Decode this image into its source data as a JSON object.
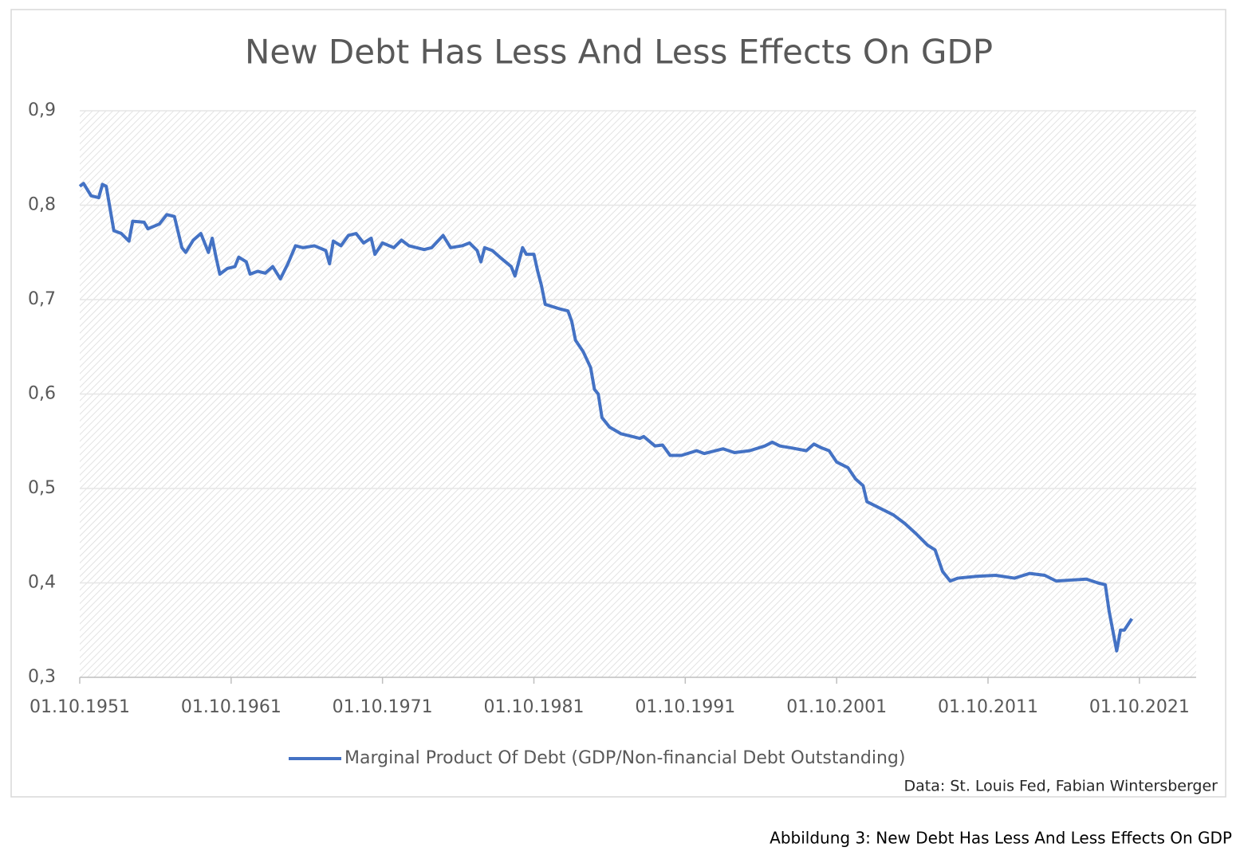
{
  "chart_data": {
    "type": "line",
    "title": "New Debt Has Less And Less Effects On GDP",
    "source": "Data: St. Louis Fed, Fabian Wintersberger",
    "caption": "Abbildung 3: New Debt Has Less And Less Effects On GDP",
    "legend": "bottom",
    "grid": true,
    "x": [
      "1951-10-01",
      "1952-01-01",
      "1952-07-01",
      "1953-01-01",
      "1953-04-01",
      "1953-07-01",
      "1954-01-01",
      "1954-07-01",
      "1955-01-01",
      "1955-04-01",
      "1956-01-01",
      "1956-04-01",
      "1957-01-01",
      "1957-07-01",
      "1958-01-01",
      "1958-07-01",
      "1958-10-01",
      "1959-04-01",
      "1959-10-01",
      "1960-04-01",
      "1960-07-01",
      "1960-10-01",
      "1961-01-01",
      "1961-07-01",
      "1962-01-01",
      "1962-04-01",
      "1962-10-01",
      "1963-01-01",
      "1963-07-01",
      "1964-01-01",
      "1964-07-01",
      "1965-01-01",
      "1965-07-01",
      "1966-01-01",
      "1966-07-01",
      "1967-04-01",
      "1968-01-01",
      "1968-04-01",
      "1968-07-01",
      "1969-01-01",
      "1969-07-01",
      "1970-01-01",
      "1970-07-01",
      "1971-01-01",
      "1971-04-01",
      "1971-10-01",
      "1972-07-01",
      "1973-01-01",
      "1973-07-01",
      "1974-07-01",
      "1975-01-01",
      "1975-10-01",
      "1976-04-01",
      "1977-01-01",
      "1977-07-01",
      "1978-01-01",
      "1978-04-01",
      "1978-07-01",
      "1979-01-01",
      "1979-07-01",
      "1980-04-01",
      "1980-07-01",
      "1981-01-01",
      "1981-04-01",
      "1981-10-01",
      "1982-01-01",
      "1982-04-01",
      "1982-07-01",
      "1983-07-01",
      "1984-01-01",
      "1984-04-01",
      "1984-07-01",
      "1985-01-01",
      "1985-07-01",
      "1985-10-01",
      "1986-01-01",
      "1986-04-01",
      "1986-10-01",
      "1987-07-01",
      "1988-04-01",
      "1988-10-01",
      "1989-01-01",
      "1989-10-01",
      "1990-04-01",
      "1990-10-01",
      "1991-07-01",
      "1992-07-01",
      "1993-01-01",
      "1994-04-01",
      "1995-01-01",
      "1996-01-01",
      "1997-01-01",
      "1997-07-01",
      "1998-01-01",
      "1998-10-01",
      "1999-10-01",
      "2000-04-01",
      "2000-10-01",
      "2001-04-01",
      "2001-10-01",
      "2002-07-01",
      "2003-01-01",
      "2003-07-01",
      "2003-10-01",
      "2004-07-01",
      "2005-07-01",
      "2006-04-01",
      "2007-01-01",
      "2007-10-01",
      "2008-04-01",
      "2008-10-01",
      "2009-04-01",
      "2009-10-01",
      "2011-01-01",
      "2012-04-01",
      "2013-07-01",
      "2014-07-01",
      "2015-07-01",
      "2016-04-01",
      "2017-04-01",
      "2018-04-01",
      "2019-01-01",
      "2019-07-01",
      "2019-10-01",
      "2020-04-01",
      "2020-07-01",
      "2020-10-01",
      "2021-04-01"
    ],
    "series": [
      {
        "name": "Marginal Product Of Debt (GDP/Non-financial Debt Outstanding)",
        "color": "#4472c4",
        "values": [
          0.82,
          0.823,
          0.81,
          0.808,
          0.822,
          0.82,
          0.773,
          0.77,
          0.762,
          0.783,
          0.782,
          0.775,
          0.78,
          0.79,
          0.788,
          0.755,
          0.75,
          0.763,
          0.77,
          0.75,
          0.765,
          0.745,
          0.727,
          0.733,
          0.735,
          0.745,
          0.74,
          0.727,
          0.73,
          0.728,
          0.735,
          0.722,
          0.738,
          0.757,
          0.755,
          0.757,
          0.752,
          0.738,
          0.762,
          0.757,
          0.768,
          0.77,
          0.76,
          0.765,
          0.748,
          0.76,
          0.755,
          0.763,
          0.757,
          0.753,
          0.755,
          0.768,
          0.755,
          0.757,
          0.76,
          0.752,
          0.74,
          0.755,
          0.752,
          0.745,
          0.735,
          0.725,
          0.755,
          0.748,
          0.748,
          0.73,
          0.715,
          0.695,
          0.69,
          0.688,
          0.677,
          0.657,
          0.645,
          0.628,
          0.605,
          0.6,
          0.575,
          0.565,
          0.558,
          0.555,
          0.553,
          0.555,
          0.545,
          0.546,
          0.535,
          0.535,
          0.54,
          0.537,
          0.542,
          0.538,
          0.54,
          0.545,
          0.549,
          0.545,
          0.543,
          0.54,
          0.547,
          0.543,
          0.54,
          0.528,
          0.522,
          0.51,
          0.503,
          0.486,
          0.48,
          0.472,
          0.463,
          0.452,
          0.44,
          0.435,
          0.412,
          0.402,
          0.405,
          0.407,
          0.408,
          0.405,
          0.41,
          0.408,
          0.402,
          0.403,
          0.404,
          0.4,
          0.398,
          0.37,
          0.328,
          0.35,
          0.35,
          0.362
        ]
      }
    ],
    "xlim": [
      "1951-10-01",
      "2025-07-01"
    ],
    "xticks": [
      {
        "value": "1951-10-01",
        "label": "01.10.1951"
      },
      {
        "value": "1961-10-01",
        "label": "01.10.1961"
      },
      {
        "value": "1971-10-01",
        "label": "01.10.1971"
      },
      {
        "value": "1981-10-01",
        "label": "01.10.1981"
      },
      {
        "value": "1991-10-01",
        "label": "01.10.1991"
      },
      {
        "value": "2001-10-01",
        "label": "01.10.2001"
      },
      {
        "value": "2011-10-01",
        "label": "01.10.2011"
      },
      {
        "value": "2021-10-01",
        "label": "01.10.2021"
      }
    ],
    "ylim": [
      0.3,
      0.9
    ],
    "yticks": [
      {
        "value": 0.3,
        "label": "0,3"
      },
      {
        "value": 0.4,
        "label": "0,4"
      },
      {
        "value": 0.5,
        "label": "0,5"
      },
      {
        "value": 0.6,
        "label": "0,6"
      },
      {
        "value": 0.7,
        "label": "0,7"
      },
      {
        "value": 0.8,
        "label": "0,8"
      },
      {
        "value": 0.9,
        "label": "0,9"
      }
    ]
  }
}
